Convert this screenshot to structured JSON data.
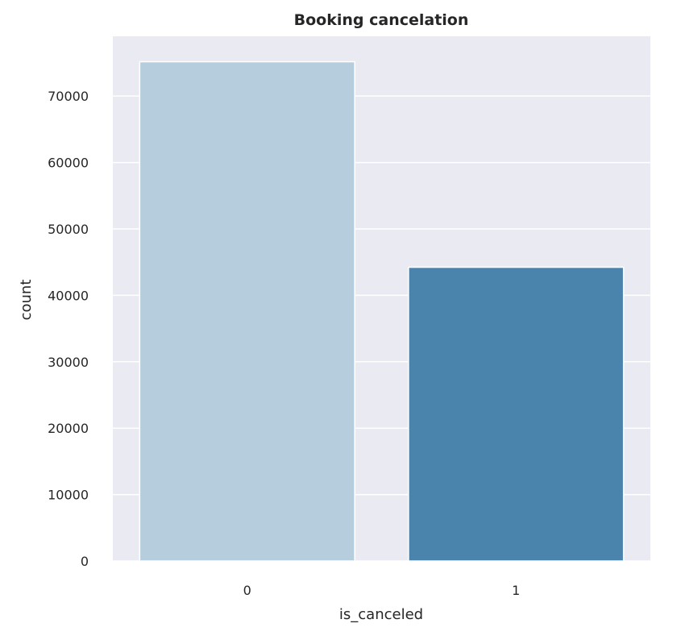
{
  "chart_data": {
    "type": "bar",
    "title": "Booking cancelation",
    "xlabel": "is_canceled",
    "ylabel": "count",
    "categories": [
      "0",
      "1"
    ],
    "values": [
      75166,
      44224
    ],
    "ylim": [
      0,
      79000
    ],
    "yticks": [
      0,
      10000,
      20000,
      30000,
      40000,
      50000,
      60000,
      70000
    ],
    "ytick_labels": [
      "0",
      "10000",
      "20000",
      "30000",
      "40000",
      "50000",
      "60000",
      "70000"
    ],
    "grid": true,
    "legend": "none",
    "colors": {
      "plot_background": "#EAEAF2",
      "grid": "#FFFFFF",
      "bars": [
        "#B6CDDE",
        "#4A84AC"
      ],
      "bar_edge": "#FFFFFF",
      "text": "#262626"
    }
  }
}
